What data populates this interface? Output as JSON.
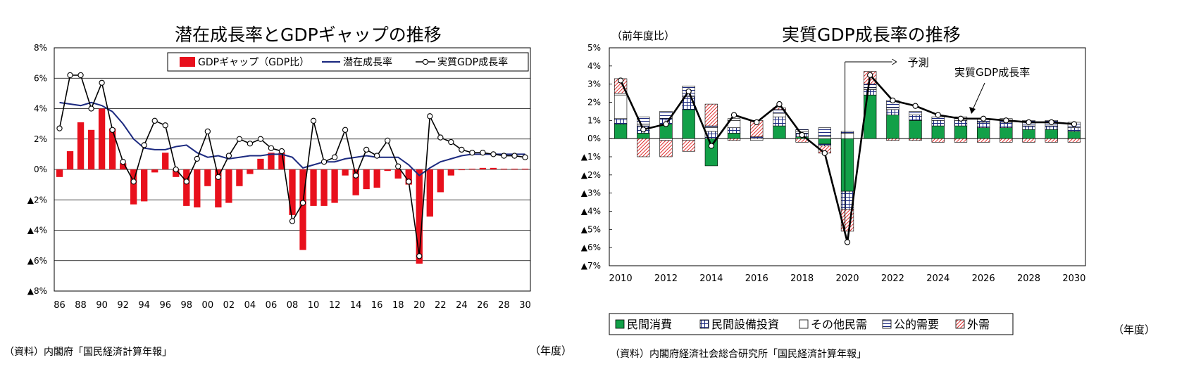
{
  "left_chart": {
    "title": "潜在成長率とGDPギャップの推移",
    "source": "（資料）内閣府「国民経済計算年報」",
    "x_unit": "（年度）",
    "legend": {
      "gap": "GDPギャップ（GDP比）",
      "potential": "潜在成長率",
      "real": "実質GDP成長率"
    },
    "colors": {
      "gap": "#e8101c",
      "potential": "#1c2a80",
      "real": "#000000"
    }
  },
  "right_chart": {
    "title": "実質GDP成長率の推移",
    "y_unit": "（前年度比）",
    "x_unit": "（年度）",
    "source": "（資料）内閣府経済社会総合研究所「国民経済計算年報」",
    "annotation_forecast": "予測",
    "annotation_real": "実質GDP成長率",
    "legend": {
      "consumption": "民間消費",
      "investment": "民間設備投資",
      "other": "その他民需",
      "public": "公的需要",
      "external": "外需"
    },
    "colors": {
      "consumption": "#12a048",
      "investment": "#1c2a80",
      "external": "#e03030"
    }
  },
  "chart_data": [
    {
      "type": "bar",
      "title": "潜在成長率とGDPギャップの推移",
      "xlabel": "（年度）",
      "ylabel": "",
      "ylim": [
        -8,
        8
      ],
      "yticks": [
        8,
        6,
        4,
        2,
        0,
        -2,
        -4,
        -6,
        -8
      ],
      "ytick_labels": [
        "8%",
        "6%",
        "4%",
        "2%",
        "0%",
        "▲2%",
        "▲4%",
        "▲6%",
        "▲8%"
      ],
      "x": [
        1986,
        1987,
        1988,
        1989,
        1990,
        1991,
        1992,
        1993,
        1994,
        1995,
        1996,
        1997,
        1998,
        1999,
        2000,
        2001,
        2002,
        2003,
        2004,
        2005,
        2006,
        2007,
        2008,
        2009,
        2010,
        2011,
        2012,
        2013,
        2014,
        2015,
        2016,
        2017,
        2018,
        2019,
        2020,
        2021,
        2022,
        2023,
        2024,
        2025,
        2026,
        2027,
        2028,
        2029,
        2030
      ],
      "xtick_labels": [
        "86",
        "88",
        "90",
        "92",
        "94",
        "96",
        "98",
        "00",
        "02",
        "04",
        "06",
        "08",
        "10",
        "12",
        "14",
        "16",
        "18",
        "20",
        "22",
        "24",
        "26",
        "28",
        "30"
      ],
      "series": [
        {
          "name": "GDPギャップ（GDP比）",
          "kind": "bar",
          "values": [
            -0.5,
            1.2,
            3.1,
            2.6,
            4.0,
            2.7,
            0.4,
            -2.3,
            -2.1,
            -0.2,
            1.1,
            -0.5,
            -2.4,
            -2.5,
            -1.1,
            -2.5,
            -2.2,
            -1.1,
            -0.3,
            0.7,
            1.1,
            1.1,
            -3.0,
            -5.3,
            -2.4,
            -2.4,
            -2.2,
            -0.4,
            -1.7,
            -1.3,
            -1.2,
            -0.1,
            -0.6,
            -1.0,
            -6.2,
            -3.1,
            -1.5,
            -0.4,
            -0.05,
            0.05,
            0.1,
            0.1,
            0.05,
            0.05,
            0.05
          ]
        },
        {
          "name": "潜在成長率",
          "kind": "line",
          "values": [
            4.4,
            4.3,
            4.2,
            4.4,
            4.2,
            3.8,
            3.0,
            2.0,
            1.4,
            1.3,
            1.3,
            1.5,
            1.6,
            1.1,
            0.8,
            0.9,
            0.7,
            0.8,
            0.9,
            0.9,
            1.0,
            1.0,
            0.8,
            0.1,
            0.3,
            0.5,
            0.5,
            0.7,
            0.8,
            0.9,
            0.8,
            0.8,
            0.8,
            0.3,
            -0.4,
            0.1,
            0.5,
            0.7,
            0.9,
            1.0,
            1.0,
            1.0,
            1.0,
            1.0,
            1.0
          ]
        },
        {
          "name": "実質GDP成長率",
          "kind": "line",
          "values": [
            2.7,
            6.2,
            6.2,
            4.0,
            5.7,
            2.6,
            0.5,
            -0.8,
            1.6,
            3.2,
            2.9,
            0.0,
            -0.8,
            0.7,
            2.5,
            -0.5,
            0.9,
            2.0,
            1.7,
            2.0,
            1.4,
            1.2,
            -3.4,
            -2.2,
            3.2,
            0.5,
            0.8,
            2.6,
            -0.4,
            1.3,
            0.9,
            1.9,
            0.2,
            -0.8,
            -5.7,
            3.5,
            2.1,
            1.8,
            1.3,
            1.1,
            1.1,
            1.0,
            0.9,
            0.9,
            0.8
          ]
        }
      ]
    },
    {
      "type": "bar",
      "title": "実質GDP成長率の推移",
      "xlabel": "（年度）",
      "ylabel": "（前年度比）",
      "ylim": [
        -7,
        5
      ],
      "yticks": [
        5,
        4,
        3,
        2,
        1,
        0,
        -1,
        -2,
        -3,
        -4,
        -5,
        -6,
        -7
      ],
      "ytick_labels": [
        "5%",
        "4%",
        "3%",
        "2%",
        "1%",
        "0%",
        "▲1%",
        "▲2%",
        "▲3%",
        "▲4%",
        "▲5%",
        "▲6%",
        "▲7%"
      ],
      "x": [
        2010,
        2011,
        2012,
        2013,
        2014,
        2015,
        2016,
        2017,
        2018,
        2019,
        2020,
        2021,
        2022,
        2023,
        2024,
        2025,
        2026,
        2027,
        2028,
        2029,
        2030
      ],
      "xtick_labels": [
        "2010",
        "2012",
        "2014",
        "2016",
        "2018",
        "2020",
        "2022",
        "2024",
        "2026",
        "2028",
        "2030"
      ],
      "series": [
        {
          "name": "民間消費",
          "kind": "stacked_bar",
          "values": [
            0.8,
            0.3,
            0.8,
            1.6,
            -1.5,
            0.3,
            0.0,
            0.7,
            0.1,
            -0.3,
            -2.9,
            2.4,
            1.3,
            1.0,
            0.7,
            0.7,
            0.6,
            0.6,
            0.5,
            0.5,
            0.4
          ]
        },
        {
          "name": "民間設備投資",
          "kind": "stacked_bar",
          "values": [
            0.3,
            0.4,
            0.3,
            0.7,
            0.4,
            0.3,
            0.1,
            0.5,
            0.2,
            -0.1,
            -1.0,
            0.3,
            0.3,
            0.3,
            0.3,
            0.3,
            0.3,
            0.3,
            0.2,
            0.2,
            0.2
          ]
        },
        {
          "name": "その他民需",
          "kind": "stacked_bar",
          "values": [
            1.3,
            0.1,
            -0.1,
            -0.1,
            0.2,
            0.4,
            -0.1,
            0.2,
            0.1,
            0.1,
            0.3,
            0.1,
            0.1,
            0.0,
            0.0,
            0.0,
            0.0,
            0.0,
            0.0,
            0.0,
            0.0
          ]
        },
        {
          "name": "公的需要",
          "kind": "stacked_bar",
          "values": [
            0.1,
            0.4,
            0.4,
            0.6,
            0.1,
            0.1,
            0.0,
            0.2,
            0.1,
            0.5,
            0.1,
            0.2,
            0.4,
            0.2,
            0.2,
            0.2,
            0.2,
            0.2,
            0.3,
            0.3,
            0.3
          ]
        },
        {
          "name": "外需",
          "kind": "stacked_bar",
          "values": [
            0.8,
            -1.0,
            -0.9,
            -0.6,
            1.2,
            -0.1,
            0.9,
            0.1,
            -0.2,
            -0.4,
            -1.2,
            0.7,
            -0.1,
            -0.1,
            -0.2,
            -0.2,
            -0.2,
            -0.2,
            -0.2,
            -0.2,
            -0.2
          ]
        },
        {
          "name": "実質GDP成長率",
          "kind": "line",
          "values": [
            3.2,
            0.5,
            0.8,
            2.6,
            -0.4,
            1.3,
            0.9,
            1.9,
            0.2,
            -0.8,
            -5.7,
            3.5,
            2.1,
            1.8,
            1.3,
            1.1,
            1.1,
            1.0,
            0.9,
            0.9,
            0.8
          ]
        }
      ]
    }
  ]
}
